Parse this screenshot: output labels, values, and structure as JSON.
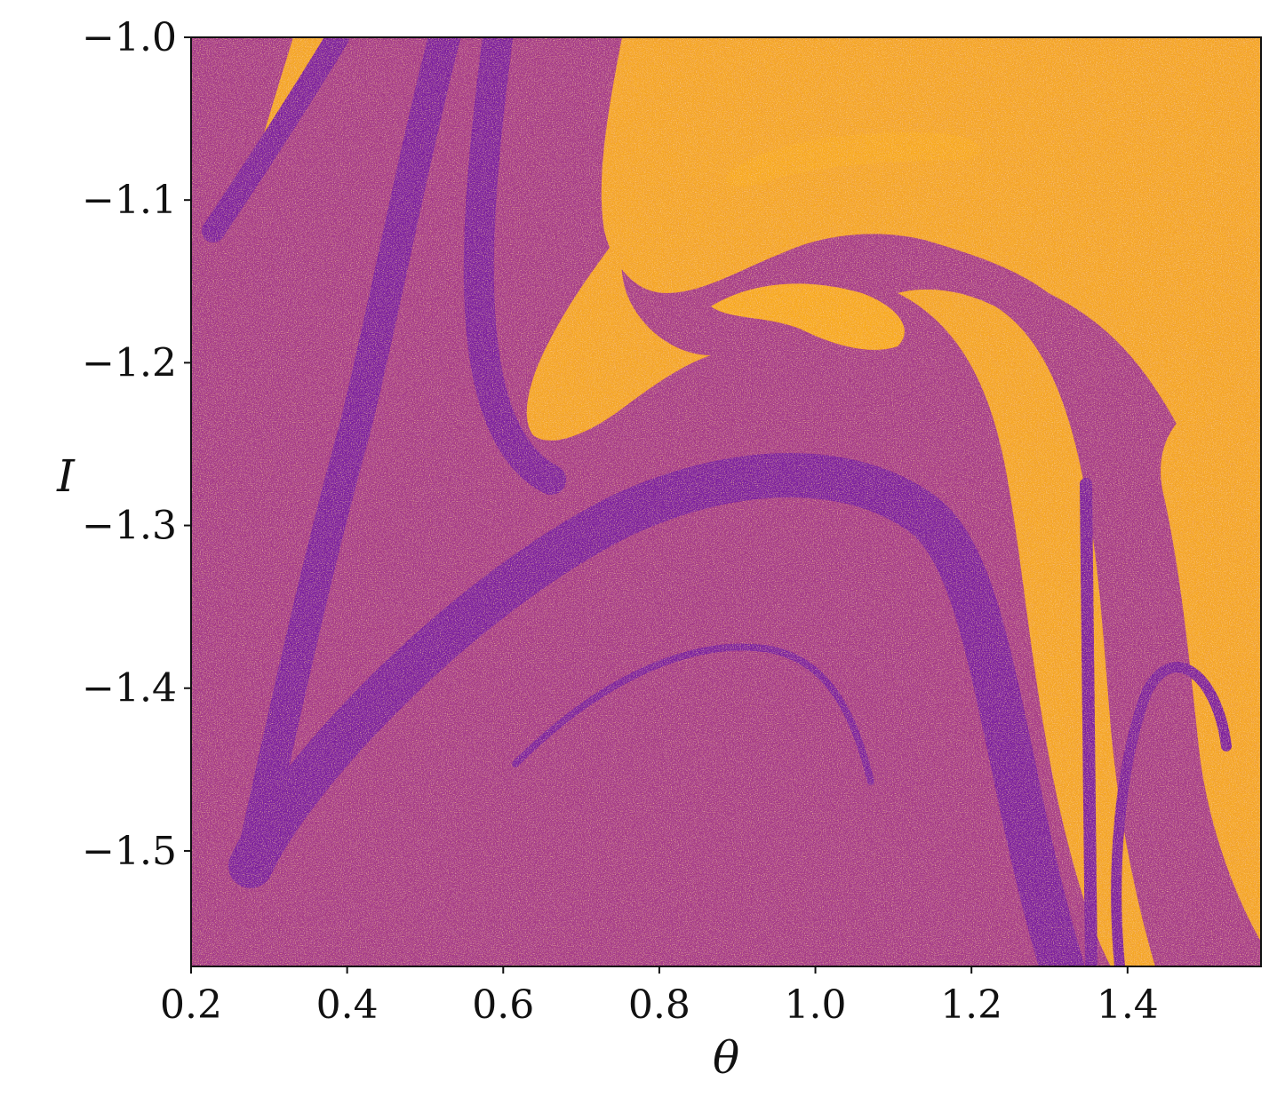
{
  "chart_data": {
    "type": "heatmap",
    "title": "",
    "xlabel": "θ",
    "ylabel": "I",
    "xlim": [
      0.2,
      1.571
    ],
    "ylim": [
      -1.571,
      -1.0
    ],
    "xticks": [
      {
        "value": 0.2,
        "label": "0.2"
      },
      {
        "value": 0.4,
        "label": "0.4"
      },
      {
        "value": 0.6,
        "label": "0.6"
      },
      {
        "value": 0.8,
        "label": "0.8"
      },
      {
        "value": 1.0,
        "label": "1.0"
      },
      {
        "value": 1.2,
        "label": "1.2"
      },
      {
        "value": 1.4,
        "label": "1.4"
      }
    ],
    "yticks": [
      {
        "value": -1.0,
        "label": "−1.0"
      },
      {
        "value": -1.1,
        "label": "−1.1"
      },
      {
        "value": -1.2,
        "label": "−1.2"
      },
      {
        "value": -1.3,
        "label": "−1.3"
      },
      {
        "value": -1.4,
        "label": "−1.4"
      },
      {
        "value": -1.5,
        "label": "−1.5"
      }
    ],
    "grid": false,
    "colors": {
      "base": "#a43a86",
      "dark_band": "#7a1e9c",
      "orange": "#f5a623",
      "orange_deep": "#f8aa1d",
      "speckle_pink": "#e58ad0",
      "speckle_orange": "#f0963a"
    }
  }
}
